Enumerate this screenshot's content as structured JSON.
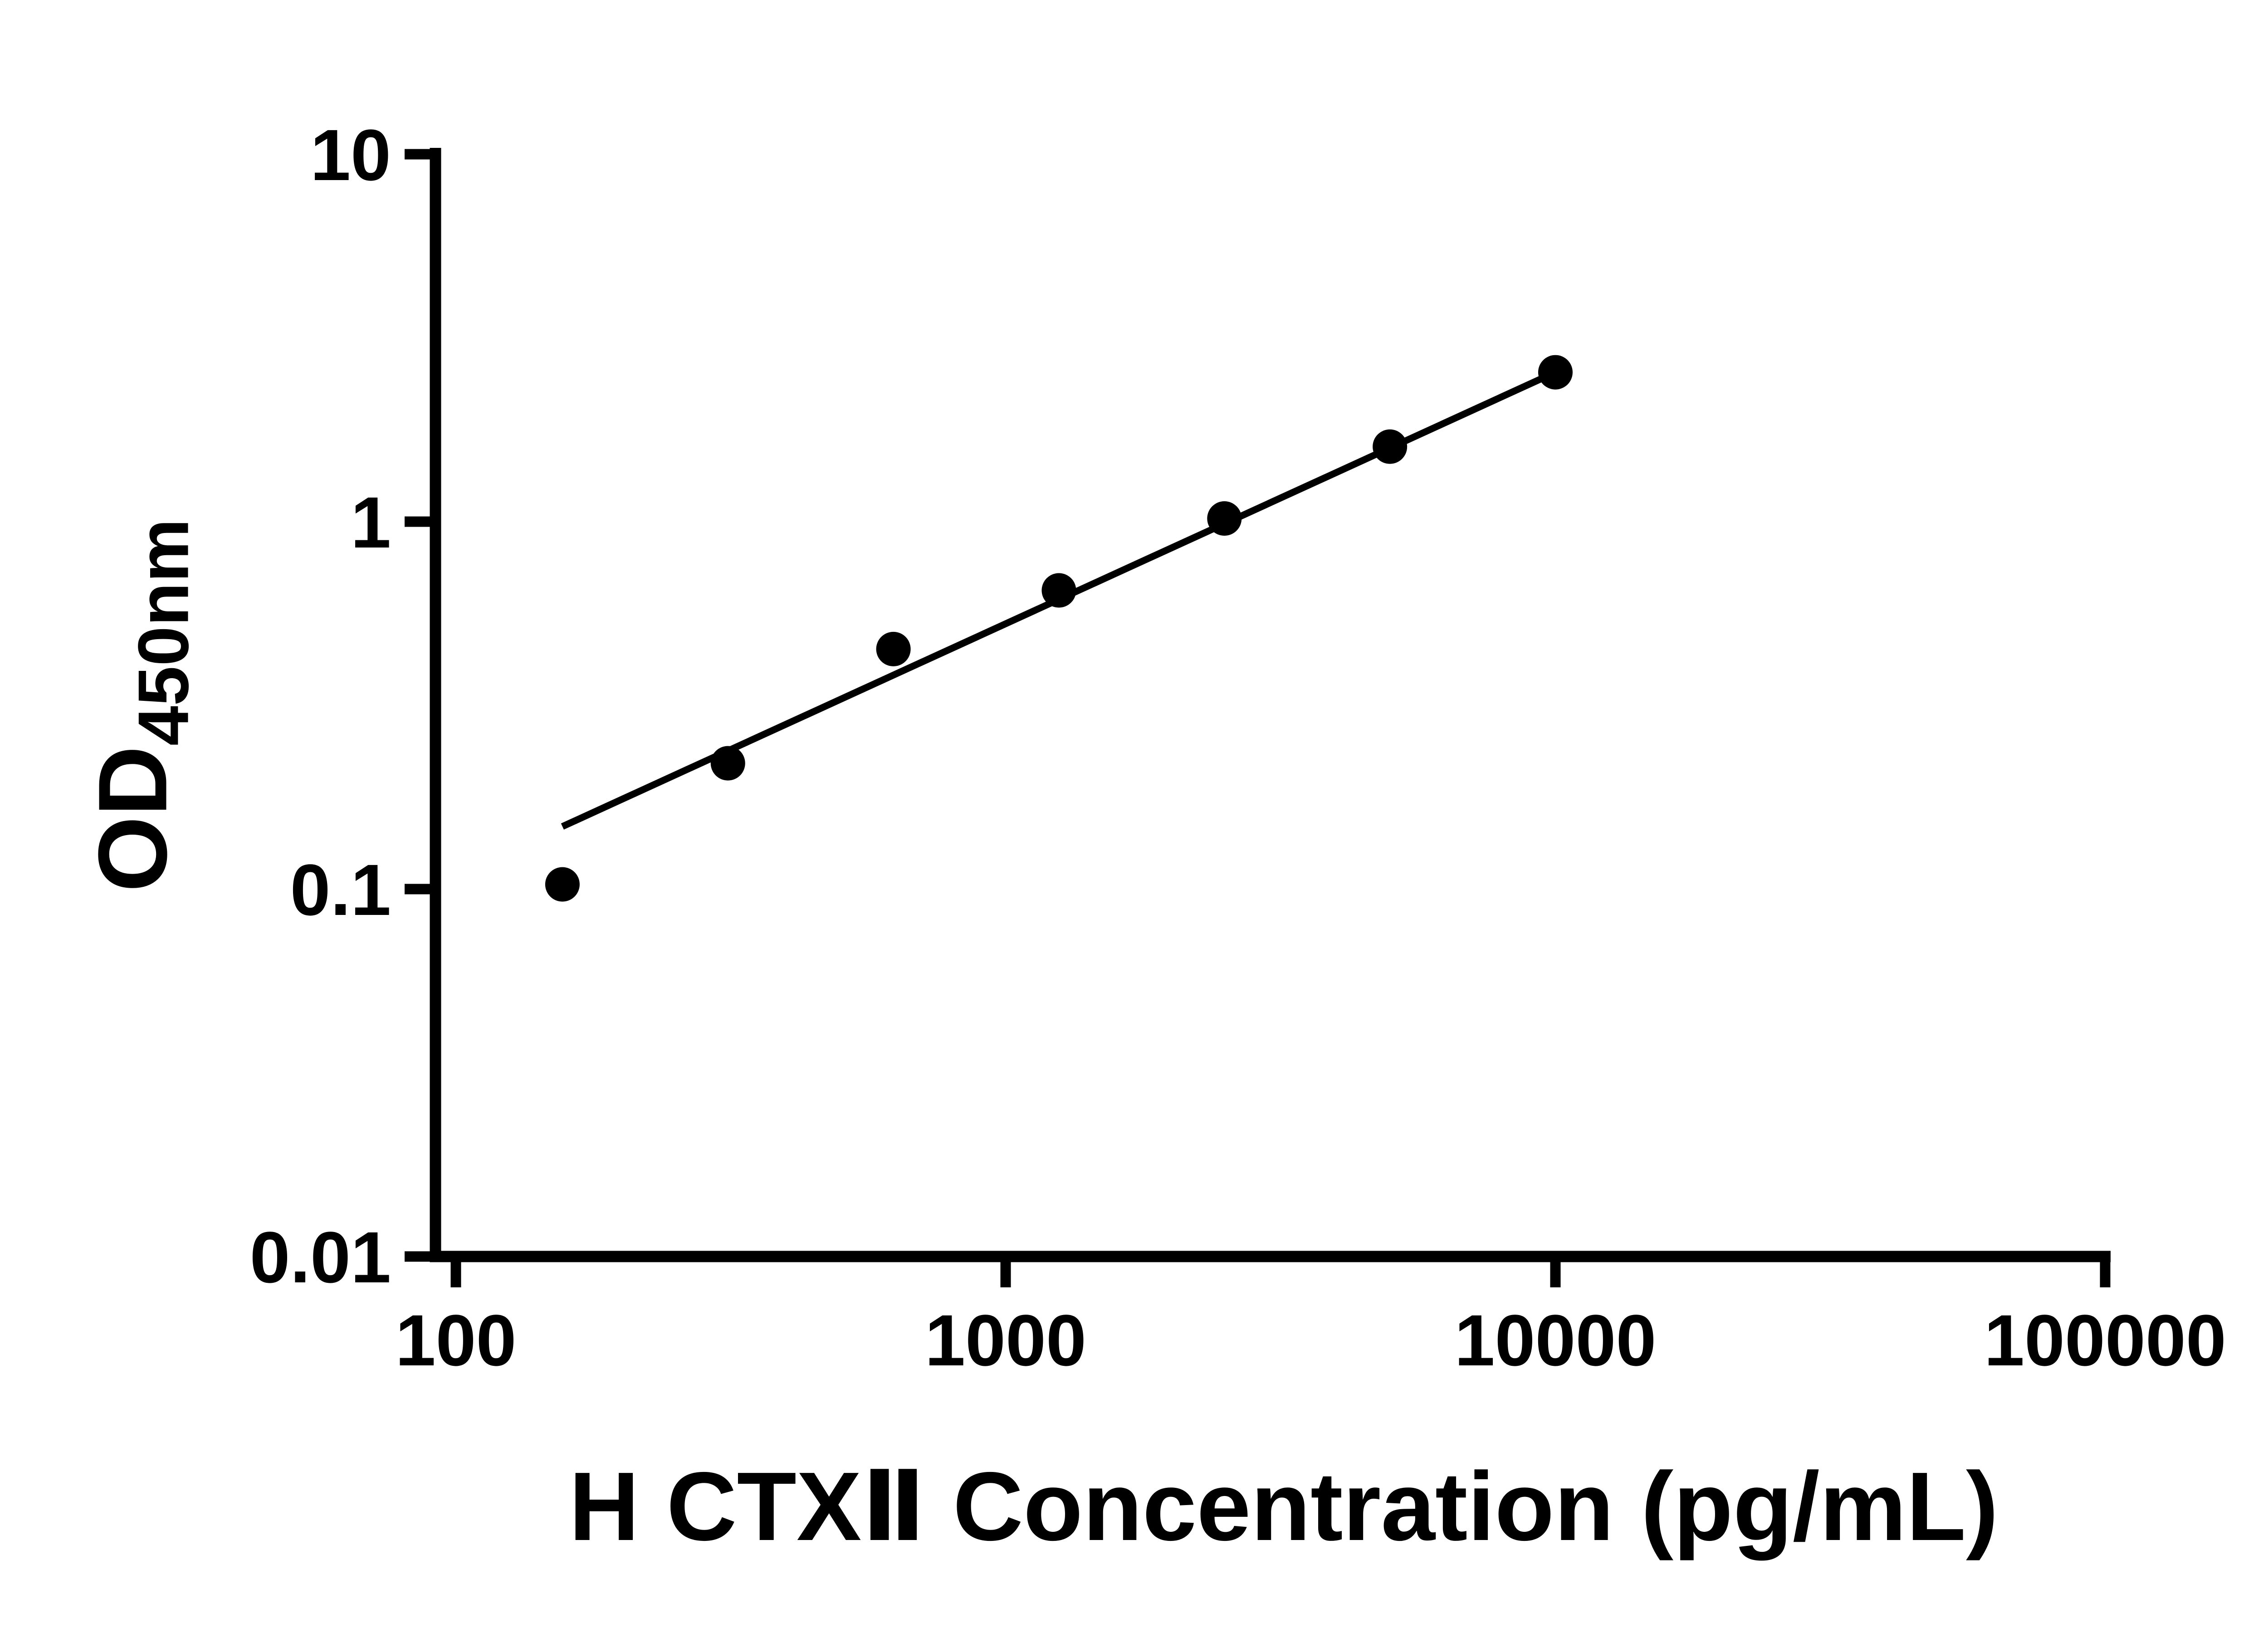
{
  "chart_data": {
    "type": "scatter",
    "title": "",
    "xlabel": "H CTXⅡ Concentration (pg/mL)",
    "ylabel_main": "OD",
    "ylabel_sub": "450nm",
    "x_scale": "log",
    "y_scale": "log",
    "xlim": [
      100,
      100000
    ],
    "ylim": [
      0.01,
      10
    ],
    "x_tick_values": [
      100,
      1000,
      10000,
      100000
    ],
    "x_tick_labels": [
      "100",
      "1000",
      "10000",
      "100000"
    ],
    "y_tick_values": [
      10,
      1,
      0.1,
      0.01
    ],
    "y_tick_labels": [
      "10",
      "1",
      "0.1",
      "0.01"
    ],
    "grid": false,
    "legend": "none",
    "background": "#ffffff",
    "axis_color": "#000000",
    "series": [
      {
        "name": "standard-curve-fit-line",
        "type": "line",
        "color": "#000000",
        "x": [
          156.25,
          10000
        ],
        "y": [
          0.148,
          2.55
        ]
      },
      {
        "name": "standard-curve-points",
        "type": "scatter",
        "marker": "filled-circle",
        "color": "#000000",
        "x": [
          156.25,
          312.5,
          625,
          1250,
          2500,
          5000,
          10000
        ],
        "y": [
          0.103,
          0.22,
          0.45,
          0.65,
          1.02,
          1.6,
          2.55
        ]
      }
    ]
  }
}
